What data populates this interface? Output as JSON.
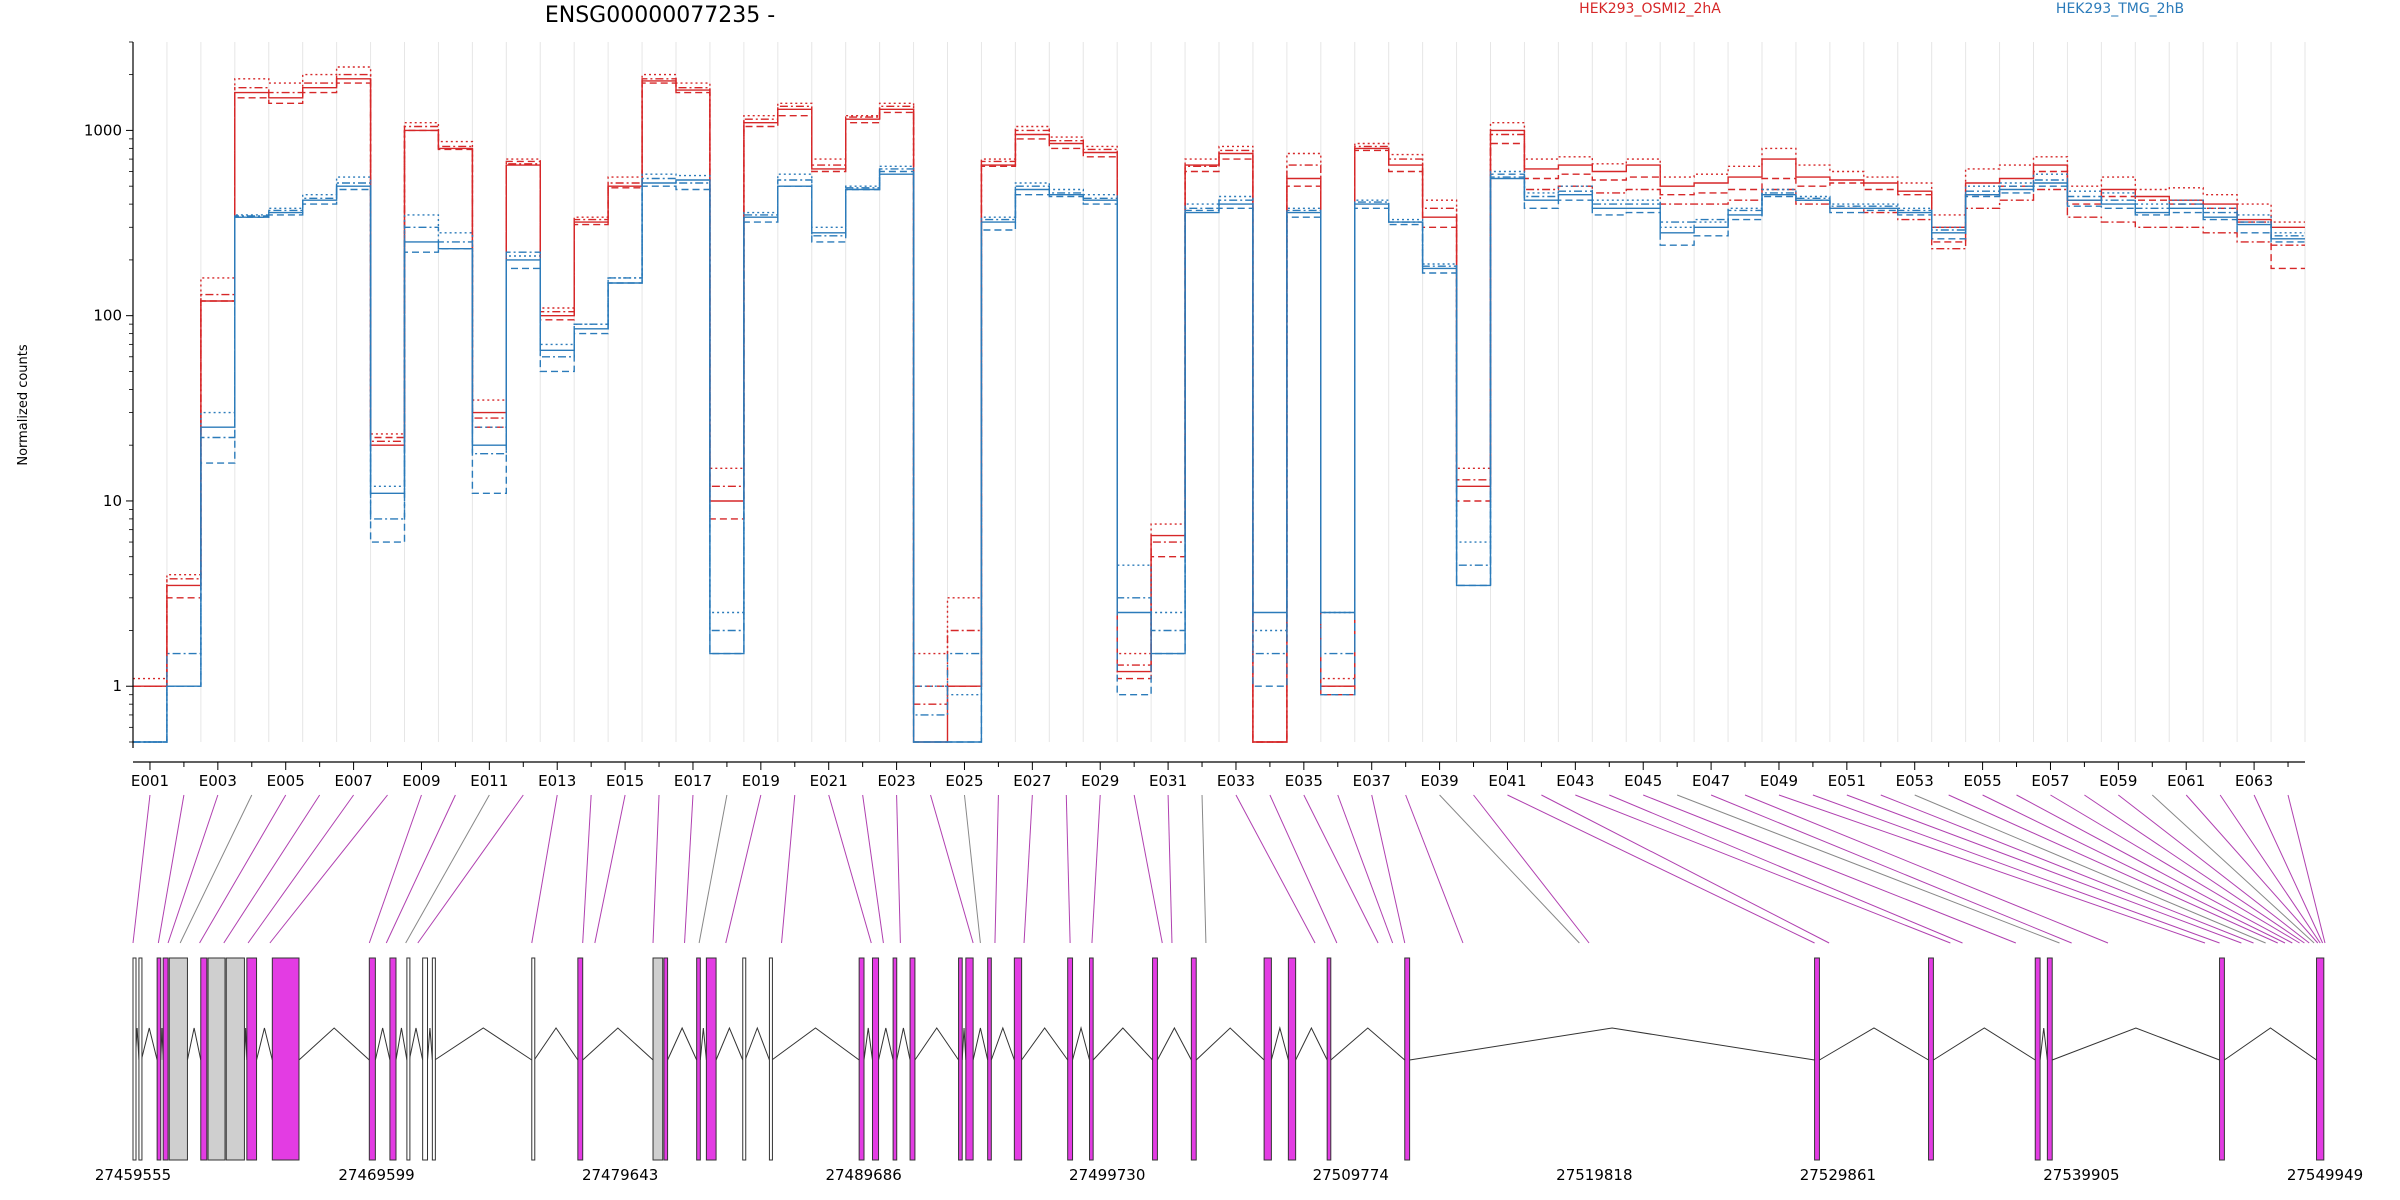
{
  "chart_data": {
    "type": "line",
    "title": "ENSG00000077235 -",
    "ylabel": "Normalized counts",
    "yscale": "log",
    "ylim": [
      0.5,
      3000
    ],
    "yticks": [
      1,
      10,
      100,
      1000
    ],
    "ytick_labels": [
      "1",
      "10",
      "100",
      "1000"
    ],
    "legend": [
      {
        "name": "HEK293_OSMI2_2hA",
        "color": "#d62728",
        "position": "top-center"
      },
      {
        "name": "HEK293_TMG_2hB",
        "color": "#2b7bba",
        "position": "top-right"
      }
    ],
    "exon_tick_labels": [
      "E001",
      "E003",
      "E005",
      "E007",
      "E009",
      "E011",
      "E013",
      "E015",
      "E017",
      "E019",
      "E021",
      "E023",
      "E025",
      "E027",
      "E029",
      "E031",
      "E033",
      "E035",
      "E037",
      "E039",
      "E041",
      "E043",
      "E045",
      "E047",
      "E049",
      "E051",
      "E053",
      "E055",
      "E057",
      "E059",
      "E061",
      "E063"
    ],
    "exons": [
      "E001",
      "E002",
      "E003",
      "E004",
      "E005",
      "E006",
      "E007",
      "E008",
      "E009",
      "E010",
      "E011",
      "E012",
      "E013",
      "E014",
      "E015",
      "E016",
      "E017",
      "E018",
      "E019",
      "E020",
      "E021",
      "E022",
      "E023",
      "E024",
      "E025",
      "E026",
      "E027",
      "E028",
      "E029",
      "E030",
      "E031",
      "E032",
      "E033",
      "E034",
      "E035",
      "E036",
      "E037",
      "E038",
      "E039",
      "E040",
      "E041",
      "E042",
      "E043",
      "E044",
      "E045",
      "E046",
      "E047",
      "E048",
      "E049",
      "E050",
      "E051",
      "E052",
      "E053",
      "E054",
      "E055",
      "E056",
      "E057",
      "E058",
      "E059",
      "E060",
      "E061",
      "E062",
      "E063",
      "E064"
    ],
    "series": [
      {
        "group": "HEK293_OSMI2_2hA",
        "style": "solid",
        "color": "#d62728",
        "values": [
          1.0,
          3.5,
          120,
          1600,
          1500,
          1700,
          1900,
          20,
          1000,
          800,
          30,
          650,
          100,
          320,
          500,
          1850,
          1650,
          10,
          1100,
          1300,
          620,
          1150,
          1300,
          0.5,
          1.0,
          650,
          950,
          850,
          760,
          1.2,
          6.5,
          650,
          750,
          0.5,
          550,
          1.0,
          800,
          650,
          340,
          12,
          1000,
          620,
          650,
          600,
          650,
          500,
          520,
          560,
          700,
          560,
          540,
          520,
          470,
          300,
          520,
          550,
          650,
          420,
          480,
          440,
          420,
          400,
          330,
          300
        ]
      },
      {
        "group": "HEK293_OSMI2_2hA",
        "style": "dotted",
        "color": "#d62728",
        "values": [
          1.1,
          4.0,
          160,
          1900,
          1800,
          2000,
          2200,
          23,
          1100,
          870,
          35,
          700,
          110,
          340,
          560,
          2000,
          1800,
          15,
          1200,
          1400,
          700,
          1200,
          1400,
          1.5,
          3.0,
          700,
          1050,
          920,
          820,
          1.5,
          7.5,
          700,
          820,
          0.5,
          750,
          1.1,
          850,
          740,
          420,
          15,
          1100,
          700,
          720,
          660,
          700,
          560,
          580,
          640,
          800,
          650,
          600,
          560,
          520,
          350,
          620,
          650,
          720,
          500,
          560,
          480,
          490,
          450,
          400,
          320
        ]
      },
      {
        "group": "HEK293_OSMI2_2hA",
        "style": "dashed",
        "color": "#d62728",
        "values": [
          1.0,
          3.0,
          120,
          1500,
          1400,
          1600,
          1800,
          22,
          1000,
          790,
          25,
          680,
          95,
          310,
          490,
          1800,
          1600,
          8,
          1050,
          1200,
          600,
          1100,
          1250,
          1.0,
          1.0,
          640,
          900,
          800,
          720,
          1.1,
          5.0,
          600,
          700,
          0.5,
          500,
          0.9,
          780,
          600,
          300,
          10,
          850,
          550,
          580,
          540,
          560,
          450,
          460,
          480,
          550,
          500,
          520,
          480,
          450,
          250,
          450,
          500,
          600,
          400,
          440,
          420,
          400,
          380,
          320,
          180
        ]
      },
      {
        "group": "HEK293_OSMI2_2hA",
        "style": "dashdot",
        "color": "#d62728",
        "values": [
          1.0,
          3.8,
          130,
          1700,
          1600,
          1800,
          2000,
          21,
          1050,
          820,
          28,
          660,
          105,
          330,
          520,
          1900,
          1700,
          12,
          1150,
          1350,
          650,
          1180,
          1350,
          0.8,
          2.0,
          680,
          1000,
          880,
          790,
          1.3,
          6.0,
          640,
          780,
          0.5,
          650,
          1.0,
          820,
          700,
          380,
          13,
          950,
          480,
          500,
          460,
          480,
          400,
          400,
          420,
          480,
          400,
          380,
          360,
          330,
          230,
          380,
          420,
          480,
          340,
          320,
          300,
          300,
          280,
          250,
          240
        ]
      },
      {
        "group": "HEK293_TMG_2hB",
        "style": "solid",
        "color": "#2b7bba",
        "values": [
          0.5,
          1.0,
          25,
          340,
          360,
          420,
          500,
          11,
          250,
          230,
          20,
          200,
          65,
          85,
          150,
          520,
          540,
          1.5,
          340,
          500,
          280,
          480,
          580,
          0.5,
          0.5,
          320,
          480,
          450,
          420,
          2.5,
          1.5,
          360,
          400,
          2.5,
          360,
          2.5,
          400,
          320,
          180,
          3.5,
          550,
          420,
          450,
          380,
          380,
          280,
          300,
          350,
          450,
          420,
          380,
          380,
          360,
          280,
          450,
          480,
          520,
          420,
          400,
          360,
          380,
          340,
          310,
          260
        ]
      },
      {
        "group": "HEK293_TMG_2hB",
        "style": "dotted",
        "color": "#2b7bba",
        "values": [
          0.5,
          1.0,
          30,
          350,
          380,
          450,
          560,
          12,
          350,
          280,
          25,
          210,
          70,
          90,
          160,
          580,
          570,
          2.5,
          360,
          580,
          300,
          500,
          640,
          1.0,
          0.9,
          340,
          520,
          480,
          450,
          4.5,
          2.5,
          400,
          440,
          2.0,
          380,
          2.5,
          420,
          330,
          190,
          6.0,
          600,
          460,
          500,
          420,
          420,
          300,
          320,
          380,
          480,
          440,
          400,
          400,
          380,
          300,
          500,
          520,
          580,
          470,
          460,
          400,
          420,
          380,
          350,
          280
        ]
      },
      {
        "group": "HEK293_TMG_2hB",
        "style": "dashed",
        "color": "#2b7bba",
        "values": [
          0.5,
          1.0,
          16,
          340,
          350,
          400,
          480,
          6,
          220,
          230,
          11,
          180,
          50,
          80,
          150,
          500,
          480,
          1.5,
          320,
          500,
          250,
          480,
          600,
          0.5,
          0.5,
          290,
          450,
          440,
          400,
          0.9,
          1.5,
          370,
          380,
          1.0,
          340,
          0.9,
          380,
          310,
          170,
          3.5,
          580,
          380,
          420,
          350,
          360,
          240,
          270,
          330,
          440,
          420,
          360,
          370,
          350,
          260,
          440,
          460,
          500,
          390,
          380,
          350,
          360,
          330,
          280,
          250
        ]
      },
      {
        "group": "HEK293_TMG_2hB",
        "style": "dashdot",
        "color": "#2b7bba",
        "values": [
          0.5,
          1.5,
          22,
          345,
          370,
          430,
          520,
          8,
          300,
          250,
          18,
          220,
          60,
          90,
          160,
          550,
          520,
          2.0,
          350,
          540,
          270,
          490,
          620,
          0.7,
          1.5,
          330,
          500,
          460,
          430,
          3.0,
          2.0,
          380,
          420,
          1.5,
          370,
          1.5,
          410,
          320,
          185,
          4.5,
          560,
          440,
          470,
          400,
          400,
          320,
          330,
          370,
          460,
          430,
          390,
          390,
          370,
          290,
          470,
          500,
          540,
          440,
          420,
          380,
          400,
          360,
          320,
          270
        ]
      }
    ],
    "genomic_axis_labels": [
      "27459555",
      "27469599",
      "27479643",
      "27489686",
      "27499730",
      "27509774",
      "27519818",
      "27529861",
      "27539905",
      "27549949"
    ],
    "genomic_range": [
      27459555,
      27549949
    ],
    "exon_genomic_positions": [
      27459555,
      27460600,
      27461000,
      27461500,
      27462300,
      27463300,
      27464300,
      27465200,
      27469300,
      27470000,
      27470800,
      27471300,
      27476000,
      27478100,
      27478600,
      27481000,
      27482300,
      27482900,
      27484000,
      27486300,
      27490000,
      27490500,
      27491200,
      27494200,
      27494500,
      27495100,
      27496300,
      27498200,
      27499100,
      27502000,
      27502400,
      27503800,
      27508300,
      27509200,
      27510900,
      27511500,
      27512000,
      27514400,
      27519200,
      27519600,
      27528900,
      27529500,
      27534500,
      27535000,
      27537200,
      27539000,
      27539500,
      27541000,
      27545000,
      27545600,
      27546500,
      27547000,
      27547500,
      27548000,
      27548300,
      27548600,
      27548900,
      27549100,
      27549300,
      27549500,
      27549650,
      27549750,
      27549850,
      27549949
    ],
    "gene_model_exons": [
      {
        "start": 27459555,
        "end": 27459650,
        "fill": "#ffffff"
      },
      {
        "start": 27459800,
        "end": 27459900,
        "fill": "#ffffff"
      },
      {
        "start": 27460550,
        "end": 27460700,
        "fill": "#e33ce3"
      },
      {
        "start": 27460800,
        "end": 27461000,
        "fill": "#e33ce3"
      },
      {
        "start": 27461050,
        "end": 27461800,
        "fill": "#cfcfcf"
      },
      {
        "start": 27462350,
        "end": 27462600,
        "fill": "#e33ce3"
      },
      {
        "start": 27462650,
        "end": 27463350,
        "fill": "#cfcfcf"
      },
      {
        "start": 27463400,
        "end": 27464150,
        "fill": "#cfcfcf"
      },
      {
        "start": 27464250,
        "end": 27464650,
        "fill": "#e33ce3"
      },
      {
        "start": 27465300,
        "end": 27466400,
        "fill": "#e33ce3"
      },
      {
        "start": 27469300,
        "end": 27469550,
        "fill": "#e33ce3"
      },
      {
        "start": 27470150,
        "end": 27470400,
        "fill": "#e33ce3"
      },
      {
        "start": 27470850,
        "end": 27470950,
        "fill": "#ffffff"
      },
      {
        "start": 27471500,
        "end": 27471700,
        "fill": "#ffffff"
      },
      {
        "start": 27471900,
        "end": 27472000,
        "fill": "#ffffff"
      },
      {
        "start": 27476000,
        "end": 27476100,
        "fill": "#ffffff"
      },
      {
        "start": 27477900,
        "end": 27478100,
        "fill": "#e33ce3"
      },
      {
        "start": 27481000,
        "end": 27481400,
        "fill": "#cfcfcf"
      },
      {
        "start": 27481450,
        "end": 27481600,
        "fill": "#e33ce3"
      },
      {
        "start": 27482800,
        "end": 27482950,
        "fill": "#e33ce3"
      },
      {
        "start": 27483200,
        "end": 27483600,
        "fill": "#e33ce3"
      },
      {
        "start": 27484700,
        "end": 27484800,
        "fill": "#ffffff"
      },
      {
        "start": 27485800,
        "end": 27485900,
        "fill": "#ffffff"
      },
      {
        "start": 27489500,
        "end": 27489700,
        "fill": "#e33ce3"
      },
      {
        "start": 27490050,
        "end": 27490300,
        "fill": "#e33ce3"
      },
      {
        "start": 27490900,
        "end": 27491050,
        "fill": "#e33ce3"
      },
      {
        "start": 27491600,
        "end": 27491800,
        "fill": "#e33ce3"
      },
      {
        "start": 27493600,
        "end": 27493750,
        "fill": "#e33ce3"
      },
      {
        "start": 27493900,
        "end": 27494200,
        "fill": "#e33ce3"
      },
      {
        "start": 27494800,
        "end": 27494950,
        "fill": "#e33ce3"
      },
      {
        "start": 27495900,
        "end": 27496200,
        "fill": "#e33ce3"
      },
      {
        "start": 27498100,
        "end": 27498300,
        "fill": "#e33ce3"
      },
      {
        "start": 27499000,
        "end": 27499150,
        "fill": "#e33ce3"
      },
      {
        "start": 27501600,
        "end": 27501800,
        "fill": "#e33ce3"
      },
      {
        "start": 27503200,
        "end": 27503400,
        "fill": "#e33ce3"
      },
      {
        "start": 27506200,
        "end": 27506500,
        "fill": "#e33ce3"
      },
      {
        "start": 27507200,
        "end": 27507500,
        "fill": "#e33ce3"
      },
      {
        "start": 27508800,
        "end": 27508950,
        "fill": "#e33ce3"
      },
      {
        "start": 27512000,
        "end": 27512200,
        "fill": "#e33ce3"
      },
      {
        "start": 27528900,
        "end": 27529100,
        "fill": "#e33ce3"
      },
      {
        "start": 27533600,
        "end": 27533800,
        "fill": "#e33ce3"
      },
      {
        "start": 27538000,
        "end": 27538200,
        "fill": "#e33ce3"
      },
      {
        "start": 27538500,
        "end": 27538700,
        "fill": "#e33ce3"
      },
      {
        "start": 27545600,
        "end": 27545800,
        "fill": "#e33ce3"
      },
      {
        "start": 27549600,
        "end": 27549900,
        "fill": "#e33ce3"
      }
    ],
    "grid": true,
    "legend_placement": "top"
  }
}
